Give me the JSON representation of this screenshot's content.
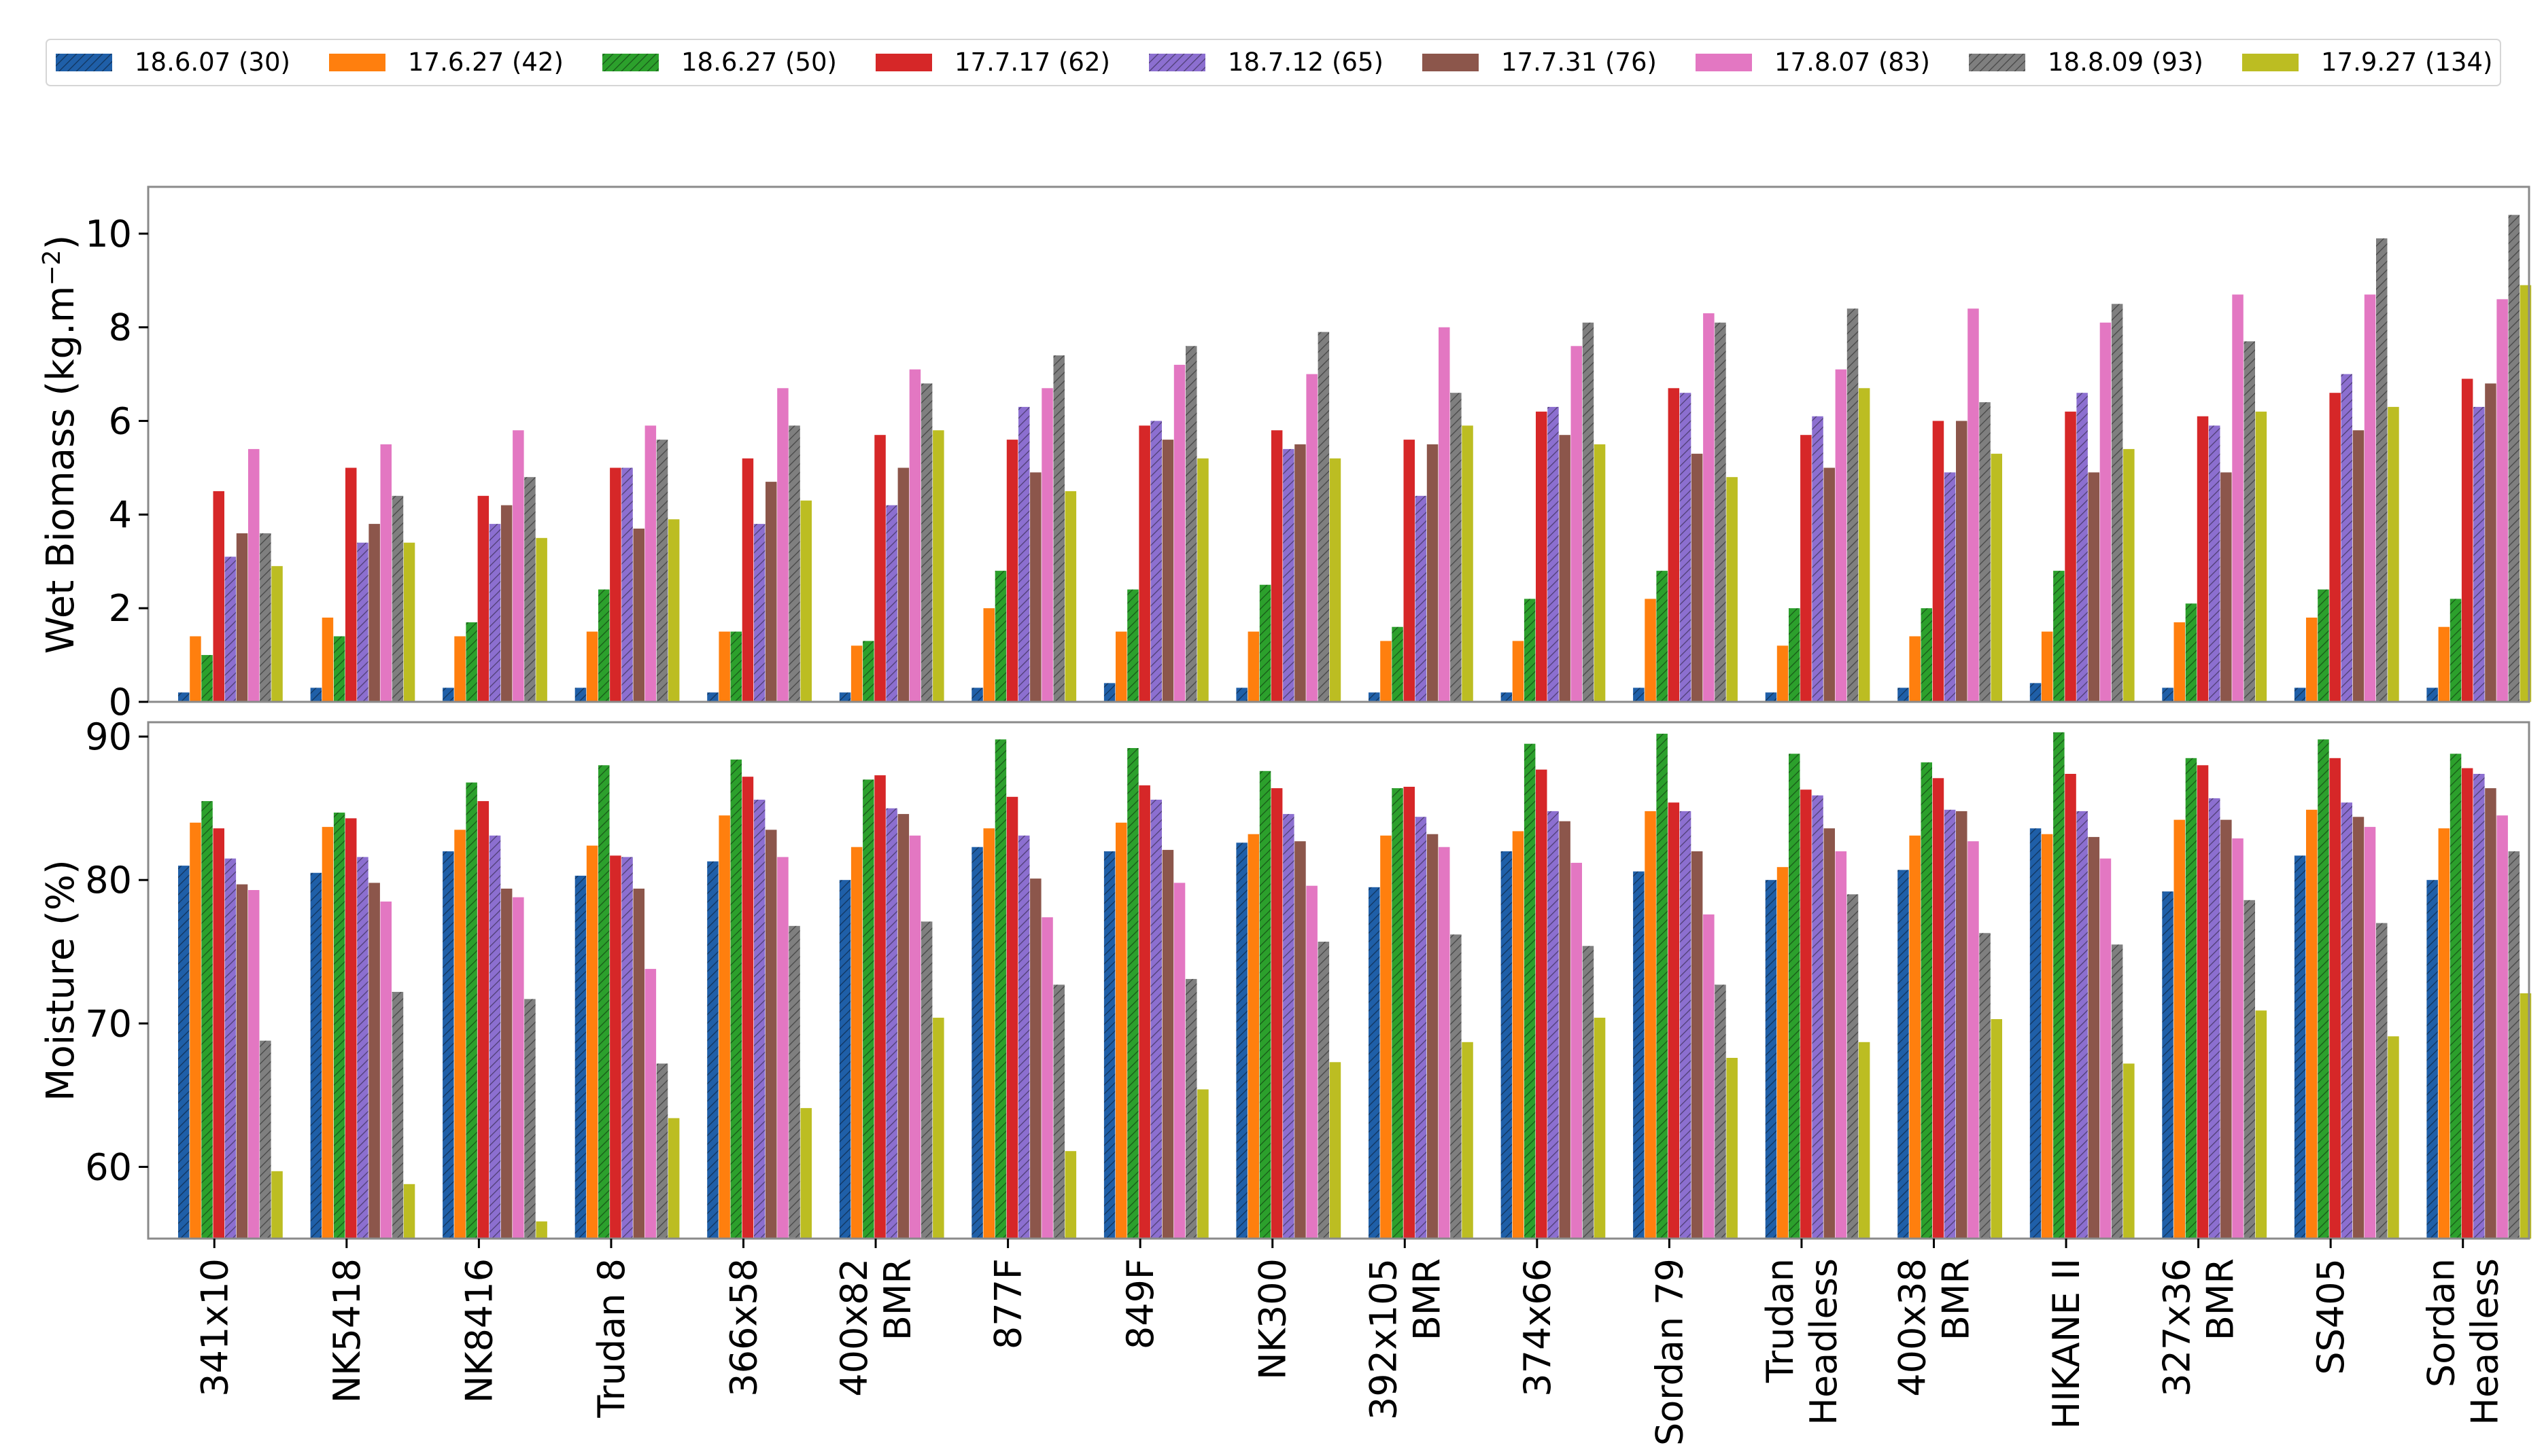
{
  "chart_data": [
    {
      "type": "bar",
      "title": "",
      "xlabel": "",
      "ylabel": "Wet Biomass (kg.m⁻²)",
      "ylabel_main": "Wet Biomass (kg.m",
      "ylabel_sup": "−2",
      "ylabel_close": ")",
      "ylim": [
        0,
        11
      ],
      "yticks": [
        "0",
        "2",
        "4",
        "6",
        "8",
        "10"
      ],
      "categories": [
        "341x10",
        "NK5418",
        "NK8416",
        "Trudan 8",
        "366x58",
        "400x82 BMR",
        "877F",
        "849F",
        "NK300",
        "392x105 BMR",
        "374x66",
        "Sordan 79",
        "Trudan Headless",
        "400x38 BMR",
        "HIKANE II",
        "327x36 BMR",
        "SS405",
        "Sordan Headless"
      ],
      "series": [
        {
          "name": "18.6.07 (30)",
          "values": [
            0.2,
            0.3,
            0.3,
            0.3,
            0.2,
            0.2,
            0.3,
            0.4,
            0.3,
            0.2,
            0.2,
            0.3,
            0.2,
            0.3,
            0.4,
            0.3,
            0.3,
            0.3
          ]
        },
        {
          "name": "17.6.27 (42)",
          "values": [
            1.4,
            1.8,
            1.4,
            1.5,
            1.5,
            1.2,
            2.0,
            1.5,
            1.5,
            1.3,
            1.3,
            2.2,
            1.2,
            1.4,
            1.5,
            1.7,
            1.8,
            1.6
          ]
        },
        {
          "name": "18.6.27 (50)",
          "values": [
            1.0,
            1.4,
            1.7,
            2.4,
            1.5,
            1.3,
            2.8,
            2.4,
            2.5,
            1.6,
            2.2,
            2.8,
            2.0,
            2.0,
            2.8,
            2.1,
            2.4,
            2.2
          ]
        },
        {
          "name": "17.7.17 (62)",
          "values": [
            4.5,
            5.0,
            4.4,
            5.0,
            5.2,
            5.7,
            5.6,
            5.9,
            5.8,
            5.6,
            6.2,
            6.7,
            5.7,
            6.0,
            6.2,
            6.1,
            6.6,
            6.9
          ]
        },
        {
          "name": "18.7.12 (65)",
          "values": [
            3.1,
            3.4,
            3.8,
            5.0,
            3.8,
            4.2,
            6.3,
            6.0,
            5.4,
            4.4,
            6.3,
            6.6,
            6.1,
            4.9,
            6.6,
            5.9,
            7.0,
            6.3
          ]
        },
        {
          "name": "17.7.31 (76)",
          "values": [
            3.6,
            3.8,
            4.2,
            3.7,
            4.7,
            5.0,
            4.9,
            5.6,
            5.5,
            5.5,
            5.7,
            5.3,
            5.0,
            6.0,
            4.9,
            4.9,
            5.8,
            6.8
          ]
        },
        {
          "name": "17.8.07 (83)",
          "values": [
            5.4,
            5.5,
            5.8,
            5.9,
            6.7,
            7.1,
            6.7,
            7.2,
            7.0,
            8.0,
            7.6,
            8.3,
            7.1,
            8.4,
            8.1,
            8.7,
            8.7,
            8.6
          ]
        },
        {
          "name": "18.8.09 (93)",
          "values": [
            3.6,
            4.4,
            4.8,
            5.6,
            5.9,
            6.8,
            7.4,
            7.6,
            7.9,
            6.6,
            8.1,
            8.1,
            8.4,
            6.4,
            8.5,
            7.7,
            9.9,
            10.4
          ]
        },
        {
          "name": "17.9.27 (134)",
          "values": [
            2.9,
            3.4,
            3.5,
            3.9,
            4.3,
            5.8,
            4.5,
            5.2,
            5.2,
            5.9,
            5.5,
            4.8,
            6.7,
            5.3,
            5.4,
            6.2,
            6.3,
            8.9
          ]
        }
      ],
      "legend": "top",
      "grid": false
    },
    {
      "type": "bar",
      "title": "",
      "xlabel": "",
      "ylabel": "Moisture (%)",
      "ylim": [
        55,
        91
      ],
      "yticks": [
        "60",
        "70",
        "80",
        "90"
      ],
      "categories": [
        "341x10",
        "NK5418",
        "NK8416",
        "Trudan 8",
        "366x58",
        "400x82 BMR",
        "877F",
        "849F",
        "NK300",
        "392x105 BMR",
        "374x66",
        "Sordan 79",
        "Trudan Headless",
        "400x38 BMR",
        "HIKANE II",
        "327x36 BMR",
        "SS405",
        "Sordan Headless"
      ],
      "series": [
        {
          "name": "18.6.07 (30)",
          "values": [
            81,
            80.5,
            82,
            80.3,
            81.3,
            80,
            82.3,
            82,
            82.6,
            79.5,
            82,
            80.6,
            80,
            80.7,
            83.6,
            79.2,
            81.7,
            80
          ]
        },
        {
          "name": "17.6.27 (42)",
          "values": [
            84,
            83.7,
            83.5,
            82.4,
            84.5,
            82.3,
            83.6,
            84,
            83.2,
            83.1,
            83.4,
            84.8,
            80.9,
            83.1,
            83.2,
            84.2,
            84.9,
            83.6
          ]
        },
        {
          "name": "18.6.27 (50)",
          "values": [
            85.5,
            84.7,
            86.8,
            88,
            88.4,
            87,
            89.8,
            89.2,
            87.6,
            86.4,
            89.5,
            90.2,
            88.8,
            88.2,
            90.3,
            88.5,
            89.8,
            88.8
          ]
        },
        {
          "name": "17.7.17 (62)",
          "values": [
            83.6,
            84.3,
            85.5,
            81.7,
            87.2,
            87.3,
            85.8,
            86.6,
            86.4,
            86.5,
            87.7,
            85.4,
            86.3,
            87.1,
            87.4,
            88,
            88.5,
            87.8
          ]
        },
        {
          "name": "18.7.12 (65)",
          "values": [
            81.5,
            81.6,
            83.1,
            81.6,
            85.6,
            85,
            83.1,
            85.6,
            84.6,
            84.4,
            84.8,
            84.8,
            85.9,
            84.9,
            84.8,
            85.7,
            85.4,
            87.4
          ]
        },
        {
          "name": "17.7.31 (76)",
          "values": [
            79.7,
            79.8,
            79.4,
            79.4,
            83.5,
            84.6,
            80.1,
            82.1,
            82.7,
            83.2,
            84.1,
            82,
            83.6,
            84.8,
            83,
            84.2,
            84.4,
            86.4
          ]
        },
        {
          "name": "17.8.07 (83)",
          "values": [
            79.3,
            78.5,
            78.8,
            73.8,
            81.6,
            83.1,
            77.4,
            79.8,
            79.6,
            82.3,
            81.2,
            77.6,
            82,
            82.7,
            81.5,
            82.9,
            83.7,
            84.5
          ]
        },
        {
          "name": "18.8.09 (93)",
          "values": [
            68.8,
            72.2,
            71.7,
            67.2,
            76.8,
            77.1,
            72.7,
            73.1,
            75.7,
            76.2,
            75.4,
            72.7,
            79,
            76.3,
            75.5,
            78.6,
            77,
            82
          ]
        },
        {
          "name": "17.9.27 (134)",
          "values": [
            59.7,
            58.8,
            56.2,
            63.4,
            64.1,
            70.4,
            61.1,
            65.4,
            67.3,
            68.7,
            70.4,
            67.6,
            68.7,
            70.3,
            67.2,
            70.9,
            69.1,
            72.1
          ]
        }
      ],
      "legend": "top",
      "grid": false
    }
  ],
  "legend_entries": [
    {
      "label": "18.6.07 (30)",
      "color": "#1f5fa8",
      "hatch": true
    },
    {
      "label": "17.6.27 (42)",
      "color": "#ff7f0e",
      "hatch": false
    },
    {
      "label": "18.6.27 (50)",
      "color": "#2ca02c",
      "hatch": true
    },
    {
      "label": "17.7.17 (62)",
      "color": "#d62728",
      "hatch": false
    },
    {
      "label": "18.7.12 (65)",
      "color": "#8c6fd0",
      "hatch": true
    },
    {
      "label": "17.7.31 (76)",
      "color": "#8c564b",
      "hatch": false
    },
    {
      "label": "17.8.07 (83)",
      "color": "#e377c2",
      "hatch": false
    },
    {
      "label": "18.8.09 (93)",
      "color": "#7f7f7f",
      "hatch": true
    },
    {
      "label": "17.9.27 (134)",
      "color": "#bcbd22",
      "hatch": false
    }
  ],
  "x_tick_lines": [
    [
      "341x10"
    ],
    [
      "NK5418"
    ],
    [
      "NK8416"
    ],
    [
      "Trudan 8"
    ],
    [
      "366x58"
    ],
    [
      "400x82",
      "BMR"
    ],
    [
      "877F"
    ],
    [
      "849F"
    ],
    [
      "NK300"
    ],
    [
      "392x105",
      "BMR"
    ],
    [
      "374x66"
    ],
    [
      "Sordan 79"
    ],
    [
      "Trudan",
      "Headless"
    ],
    [
      "400x38",
      "BMR"
    ],
    [
      "HIKANE II"
    ],
    [
      "327x36",
      "BMR"
    ],
    [
      "SS405"
    ],
    [
      "Sordan",
      "Headless"
    ]
  ]
}
